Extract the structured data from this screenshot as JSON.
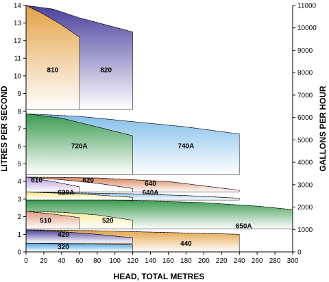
{
  "chart_data": {
    "type": "area",
    "title": "",
    "xlabel": "HEAD, TOTAL METRES",
    "ylabel": "LITRES PER SECOND",
    "y2label": "GALLONS PER HOUR",
    "xlim": [
      0,
      300
    ],
    "ylim": [
      0,
      14
    ],
    "y2lim": [
      0,
      11000
    ],
    "x_ticks": [
      0,
      20,
      40,
      60,
      80,
      100,
      120,
      140,
      160,
      180,
      200,
      220,
      240,
      260,
      280,
      300
    ],
    "y_ticks": [
      0,
      1,
      2,
      3,
      4,
      5,
      6,
      7,
      8,
      9,
      10,
      11,
      12,
      13,
      14
    ],
    "y2_ticks": [
      0,
      1000,
      2000,
      3000,
      4000,
      5000,
      6000,
      7000,
      8000,
      9000,
      10000,
      11000
    ],
    "grid": false,
    "regions": [
      {
        "name": "820",
        "color": "#4a3f9c",
        "x_max": 120,
        "top": [
          [
            0,
            14
          ],
          [
            30,
            13.8
          ],
          [
            60,
            13.3
          ],
          [
            90,
            12.9
          ],
          [
            120,
            12.5
          ]
        ],
        "bottom": 8.1
      },
      {
        "name": "810",
        "color": "#e3a247",
        "x_max": 60,
        "top": [
          [
            0,
            14
          ],
          [
            20,
            13.5
          ],
          [
            40,
            12.9
          ],
          [
            60,
            12.2
          ]
        ],
        "bottom": 8.1
      },
      {
        "name": "740A",
        "color": "#7fbde8",
        "x_max": 240,
        "top": [
          [
            0,
            7.85
          ],
          [
            60,
            7.7
          ],
          [
            120,
            7.4
          ],
          [
            180,
            7.1
          ],
          [
            240,
            6.7
          ]
        ],
        "bottom": 4.4
      },
      {
        "name": "720A",
        "color": "#3a9a4f",
        "x_max": 120,
        "top": [
          [
            0,
            7.85
          ],
          [
            40,
            7.6
          ],
          [
            80,
            7.1
          ],
          [
            120,
            6.6
          ]
        ],
        "bottom": 4.4
      },
      {
        "name": "640",
        "color": "#d77f58",
        "x_max": 240,
        "top": [
          [
            0,
            4.25
          ],
          [
            80,
            4.2
          ],
          [
            160,
            4.0
          ],
          [
            240,
            3.5
          ]
        ],
        "bottom": 3.4
      },
      {
        "name": "620",
        "color": "#ffffff",
        "x_max": 120,
        "top": [
          [
            0,
            4.25
          ],
          [
            40,
            4.1
          ],
          [
            80,
            3.9
          ],
          [
            120,
            3.6
          ]
        ],
        "bottom": 3.4
      },
      {
        "name": "610",
        "color": "#b79adb",
        "x_max": 60,
        "top": [
          [
            0,
            4.25
          ],
          [
            30,
            4.0
          ],
          [
            60,
            3.7
          ]
        ],
        "bottom": 3.4
      },
      {
        "name": "640A",
        "color": "#7fbde8",
        "x_max": 240,
        "top": [
          [
            0,
            3.4
          ],
          [
            120,
            3.3
          ],
          [
            180,
            3.2
          ],
          [
            240,
            3.05
          ]
        ],
        "bottom": 2.95
      },
      {
        "name": "620A",
        "color": "#f4e98a",
        "x_max": 120,
        "top": [
          [
            0,
            3.4
          ],
          [
            60,
            3.3
          ],
          [
            120,
            3.1
          ]
        ],
        "bottom": 2.95
      },
      {
        "name": "650A",
        "color": "#3a9a4f",
        "x_max": 300,
        "top": [
          [
            0,
            2.95
          ],
          [
            100,
            2.95
          ],
          [
            200,
            2.8
          ],
          [
            260,
            2.6
          ],
          [
            300,
            2.4
          ]
        ],
        "bottom": 1.3
      },
      {
        "name": "520",
        "color": "#f6ee9c",
        "x_max": 120,
        "top": [
          [
            0,
            2.3
          ],
          [
            40,
            2.25
          ],
          [
            80,
            2.1
          ],
          [
            120,
            1.8
          ]
        ],
        "bottom": 1.3
      },
      {
        "name": "510",
        "color": "#e09a83",
        "x_max": 60,
        "top": [
          [
            0,
            2.3
          ],
          [
            30,
            2.15
          ],
          [
            60,
            1.95
          ]
        ],
        "bottom": 1.3
      },
      {
        "name": "440",
        "color": "#e3a247",
        "x_max": 240,
        "top": [
          [
            0,
            1.25
          ],
          [
            80,
            1.2
          ],
          [
            160,
            1.1
          ],
          [
            240,
            1.0
          ]
        ],
        "bottom": 0
      },
      {
        "name": "420",
        "color": "#4a3f9c",
        "x_max": 120,
        "top": [
          [
            0,
            1.25
          ],
          [
            40,
            1.15
          ],
          [
            80,
            1.0
          ],
          [
            120,
            0.8
          ]
        ],
        "bottom": 0.5
      },
      {
        "name": "320",
        "color": "#4aa3e0",
        "x_max": 120,
        "top": [
          [
            0,
            0.5
          ],
          [
            60,
            0.45
          ],
          [
            120,
            0.4
          ]
        ],
        "bottom": 0
      }
    ],
    "labels": [
      {
        "text": "810",
        "x": 30,
        "y": 10.2
      },
      {
        "text": "820",
        "x": 90,
        "y": 10.2
      },
      {
        "text": "720A",
        "x": 60,
        "y": 5.9
      },
      {
        "text": "740A",
        "x": 180,
        "y": 5.9
      },
      {
        "text": "610",
        "x": 12,
        "y": 3.95
      },
      {
        "text": "620",
        "x": 70,
        "y": 3.95
      },
      {
        "text": "640",
        "x": 140,
        "y": 3.75
      },
      {
        "text": "620A",
        "x": 45,
        "y": 3.25
      },
      {
        "text": "640A",
        "x": 140,
        "y": 3.25
      },
      {
        "text": "650A",
        "x": 245,
        "y": 1.35
      },
      {
        "text": "510",
        "x": 22,
        "y": 1.65
      },
      {
        "text": "520",
        "x": 92,
        "y": 1.65
      },
      {
        "text": "420",
        "x": 42,
        "y": 0.85
      },
      {
        "text": "320",
        "x": 42,
        "y": 0.15
      },
      {
        "text": "440",
        "x": 180,
        "y": 0.35
      }
    ]
  }
}
